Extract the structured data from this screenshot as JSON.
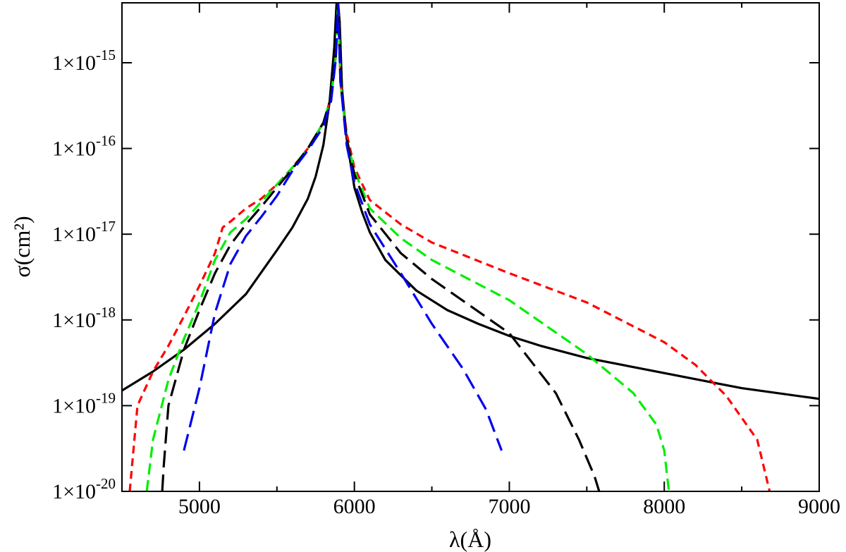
{
  "chart_data": {
    "type": "line",
    "xlabel": "λ(Å)",
    "ylabel": "σ(cm²)",
    "xlim": [
      4500,
      9000
    ],
    "ylim": [
      1e-20,
      5e-15
    ],
    "y_scale": "log",
    "grid": false,
    "x_ticks": [
      {
        "value": 5000,
        "label": "5000"
      },
      {
        "value": 6000,
        "label": "6000"
      },
      {
        "value": 7000,
        "label": "7000"
      },
      {
        "value": 8000,
        "label": "8000"
      },
      {
        "value": 9000,
        "label": "9000"
      }
    ],
    "y_ticks": [
      {
        "value": 1e-20,
        "mantissa": "1×10",
        "exponent": "-20"
      },
      {
        "value": 1e-19,
        "mantissa": "1×10",
        "exponent": "-19"
      },
      {
        "value": 1e-18,
        "mantissa": "1×10",
        "exponent": "-18"
      },
      {
        "value": 1e-17,
        "mantissa": "1×10",
        "exponent": "-17"
      },
      {
        "value": 1e-16,
        "mantissa": "1×10",
        "exponent": "-16"
      },
      {
        "value": 1e-15,
        "mantissa": "1×10",
        "exponent": "-15"
      }
    ],
    "series": [
      {
        "color": "#000000",
        "dash": "solid",
        "x": [
          4500,
          4700,
          4900,
          5100,
          5300,
          5500,
          5600,
          5700,
          5750,
          5800,
          5840,
          5870,
          5885,
          5895,
          5905,
          5920,
          5950,
          6000,
          6050,
          6100,
          6200,
          6400,
          6600,
          6800,
          7000,
          7200,
          7500,
          8000,
          8500,
          9000
        ],
        "y": [
          1.5e-19,
          2.5e-19,
          4.5e-19,
          9e-19,
          2e-18,
          6.5e-18,
          1.2e-17,
          2.6e-17,
          4.7e-17,
          1.1e-16,
          3.5e-16,
          1.5e-15,
          5e-15,
          5e-15,
          3e-15,
          5e-16,
          1.3e-16,
          3.5e-17,
          1.8e-17,
          1.05e-17,
          5e-18,
          2.2e-18,
          1.3e-18,
          9e-19,
          6.5e-19,
          5e-19,
          3.6e-19,
          2.4e-19,
          1.6e-19,
          1.2e-19
        ]
      },
      {
        "color": "#ff0000",
        "dash": "short",
        "x": [
          4550,
          4600,
          4700,
          4800,
          4900,
          5000,
          5100,
          5150,
          5200,
          5300,
          5400,
          5500,
          5600,
          5700,
          5800,
          5850,
          5880,
          5895,
          5910,
          5950,
          6000,
          6100,
          6300,
          6500,
          7000,
          7500,
          8000,
          8200,
          8400,
          8600,
          8680
        ],
        "y": [
          1e-20,
          1e-19,
          2.5e-19,
          5e-19,
          1.1e-18,
          2.5e-18,
          6e-18,
          1.2e-17,
          1.4e-17,
          2e-17,
          2.6e-17,
          3.8e-17,
          6e-17,
          1e-16,
          2e-16,
          4e-16,
          1.2e-15,
          5e-15,
          6e-16,
          1.5e-16,
          6e-17,
          2.5e-17,
          1.3e-17,
          8e-18,
          3.5e-18,
          1.6e-18,
          5.5e-19,
          3e-19,
          1.3e-19,
          4e-20,
          1e-20
        ]
      },
      {
        "color": "#00ee00",
        "dash": "medium",
        "x": [
          4660,
          4700,
          4800,
          4900,
          5000,
          5100,
          5200,
          5300,
          5400,
          5500,
          5600,
          5700,
          5800,
          5850,
          5880,
          5895,
          5910,
          5950,
          6000,
          6100,
          6300,
          6500,
          7000,
          7500,
          7800,
          7950,
          8000,
          8030
        ],
        "y": [
          1e-20,
          4e-20,
          2e-19,
          6e-19,
          1.6e-18,
          5e-18,
          1.05e-17,
          1.5e-17,
          2.4e-17,
          3.8e-17,
          6e-17,
          1e-16,
          2e-16,
          4e-16,
          1.2e-15,
          5e-15,
          6e-16,
          1.3e-16,
          5.5e-17,
          2e-17,
          9e-18,
          5e-18,
          1.7e-18,
          4e-19,
          1.4e-19,
          6e-20,
          3e-20,
          1e-20
        ]
      },
      {
        "color": "#000000",
        "dash": "long",
        "x": [
          4760,
          4770,
          4800,
          4900,
          5000,
          5100,
          5200,
          5300,
          5400,
          5500,
          5600,
          5700,
          5800,
          5850,
          5880,
          5895,
          5910,
          5950,
          6000,
          6100,
          6300,
          6500,
          7000,
          7300,
          7450,
          7550,
          7580
        ],
        "y": [
          1e-20,
          2e-20,
          1e-19,
          4.5e-19,
          1.3e-18,
          3.5e-18,
          7.5e-18,
          1.3e-17,
          2.1e-17,
          3.5e-17,
          5.8e-17,
          1e-16,
          2e-16,
          4e-16,
          1.2e-15,
          5e-15,
          6e-16,
          1.3e-16,
          5e-17,
          1.7e-17,
          6e-18,
          3e-18,
          7e-19,
          1.4e-19,
          4e-20,
          1.5e-20,
          1e-20
        ]
      },
      {
        "color": "#0000ee",
        "dash": "long",
        "x": [
          4900,
          5000,
          5100,
          5200,
          5300,
          5400,
          5500,
          5600,
          5700,
          5800,
          5850,
          5880,
          5895,
          5910,
          5950,
          6000,
          6100,
          6300,
          6500,
          6700,
          6850,
          6950
        ],
        "y": [
          3e-20,
          1.6e-19,
          1.2e-18,
          4.5e-18,
          9.5e-18,
          1.6e-17,
          2.8e-17,
          5.5e-17,
          9.5e-17,
          1.8e-16,
          3.6e-16,
          1.1e-15,
          5e-15,
          6e-16,
          1.1e-16,
          4e-17,
          1.3e-17,
          3.5e-18,
          9e-19,
          2.7e-19,
          9e-20,
          3e-20
        ]
      }
    ]
  }
}
